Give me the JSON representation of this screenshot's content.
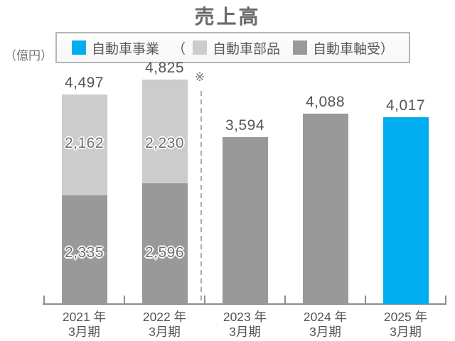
{
  "title": "売上高",
  "unit_label": "（億円）",
  "note_symbol": "※",
  "legend": {
    "paren_open": "（",
    "paren_close": "）",
    "items": [
      {
        "label": "自動車事業",
        "color": "#00aeef"
      },
      {
        "label": "自動車部品",
        "color": "#cccccc"
      },
      {
        "label": "自動車軸受",
        "color": "#999999"
      }
    ]
  },
  "chart_data": {
    "type": "bar",
    "title": "売上高",
    "ylabel": "億円",
    "ylim": [
      0,
      4825
    ],
    "grid": false,
    "legend_position": "top",
    "categories": [
      "2021年3月期",
      "2022年3月期",
      "2023年3月期",
      "2024年3月期",
      "2025年3月期"
    ],
    "series": [
      {
        "name": "自動車軸受",
        "color": "#999999",
        "values": [
          2335,
          2596,
          3594,
          4088,
          0
        ]
      },
      {
        "name": "自動車部品",
        "color": "#cccccc",
        "values": [
          2162,
          2230,
          0,
          0,
          0
        ]
      },
      {
        "name": "自動車事業",
        "color": "#00aeef",
        "values": [
          0,
          0,
          0,
          0,
          4017
        ]
      }
    ],
    "totals": [
      4497,
      4825,
      3594,
      4088,
      4017
    ],
    "annotations": [
      "※"
    ]
  }
}
